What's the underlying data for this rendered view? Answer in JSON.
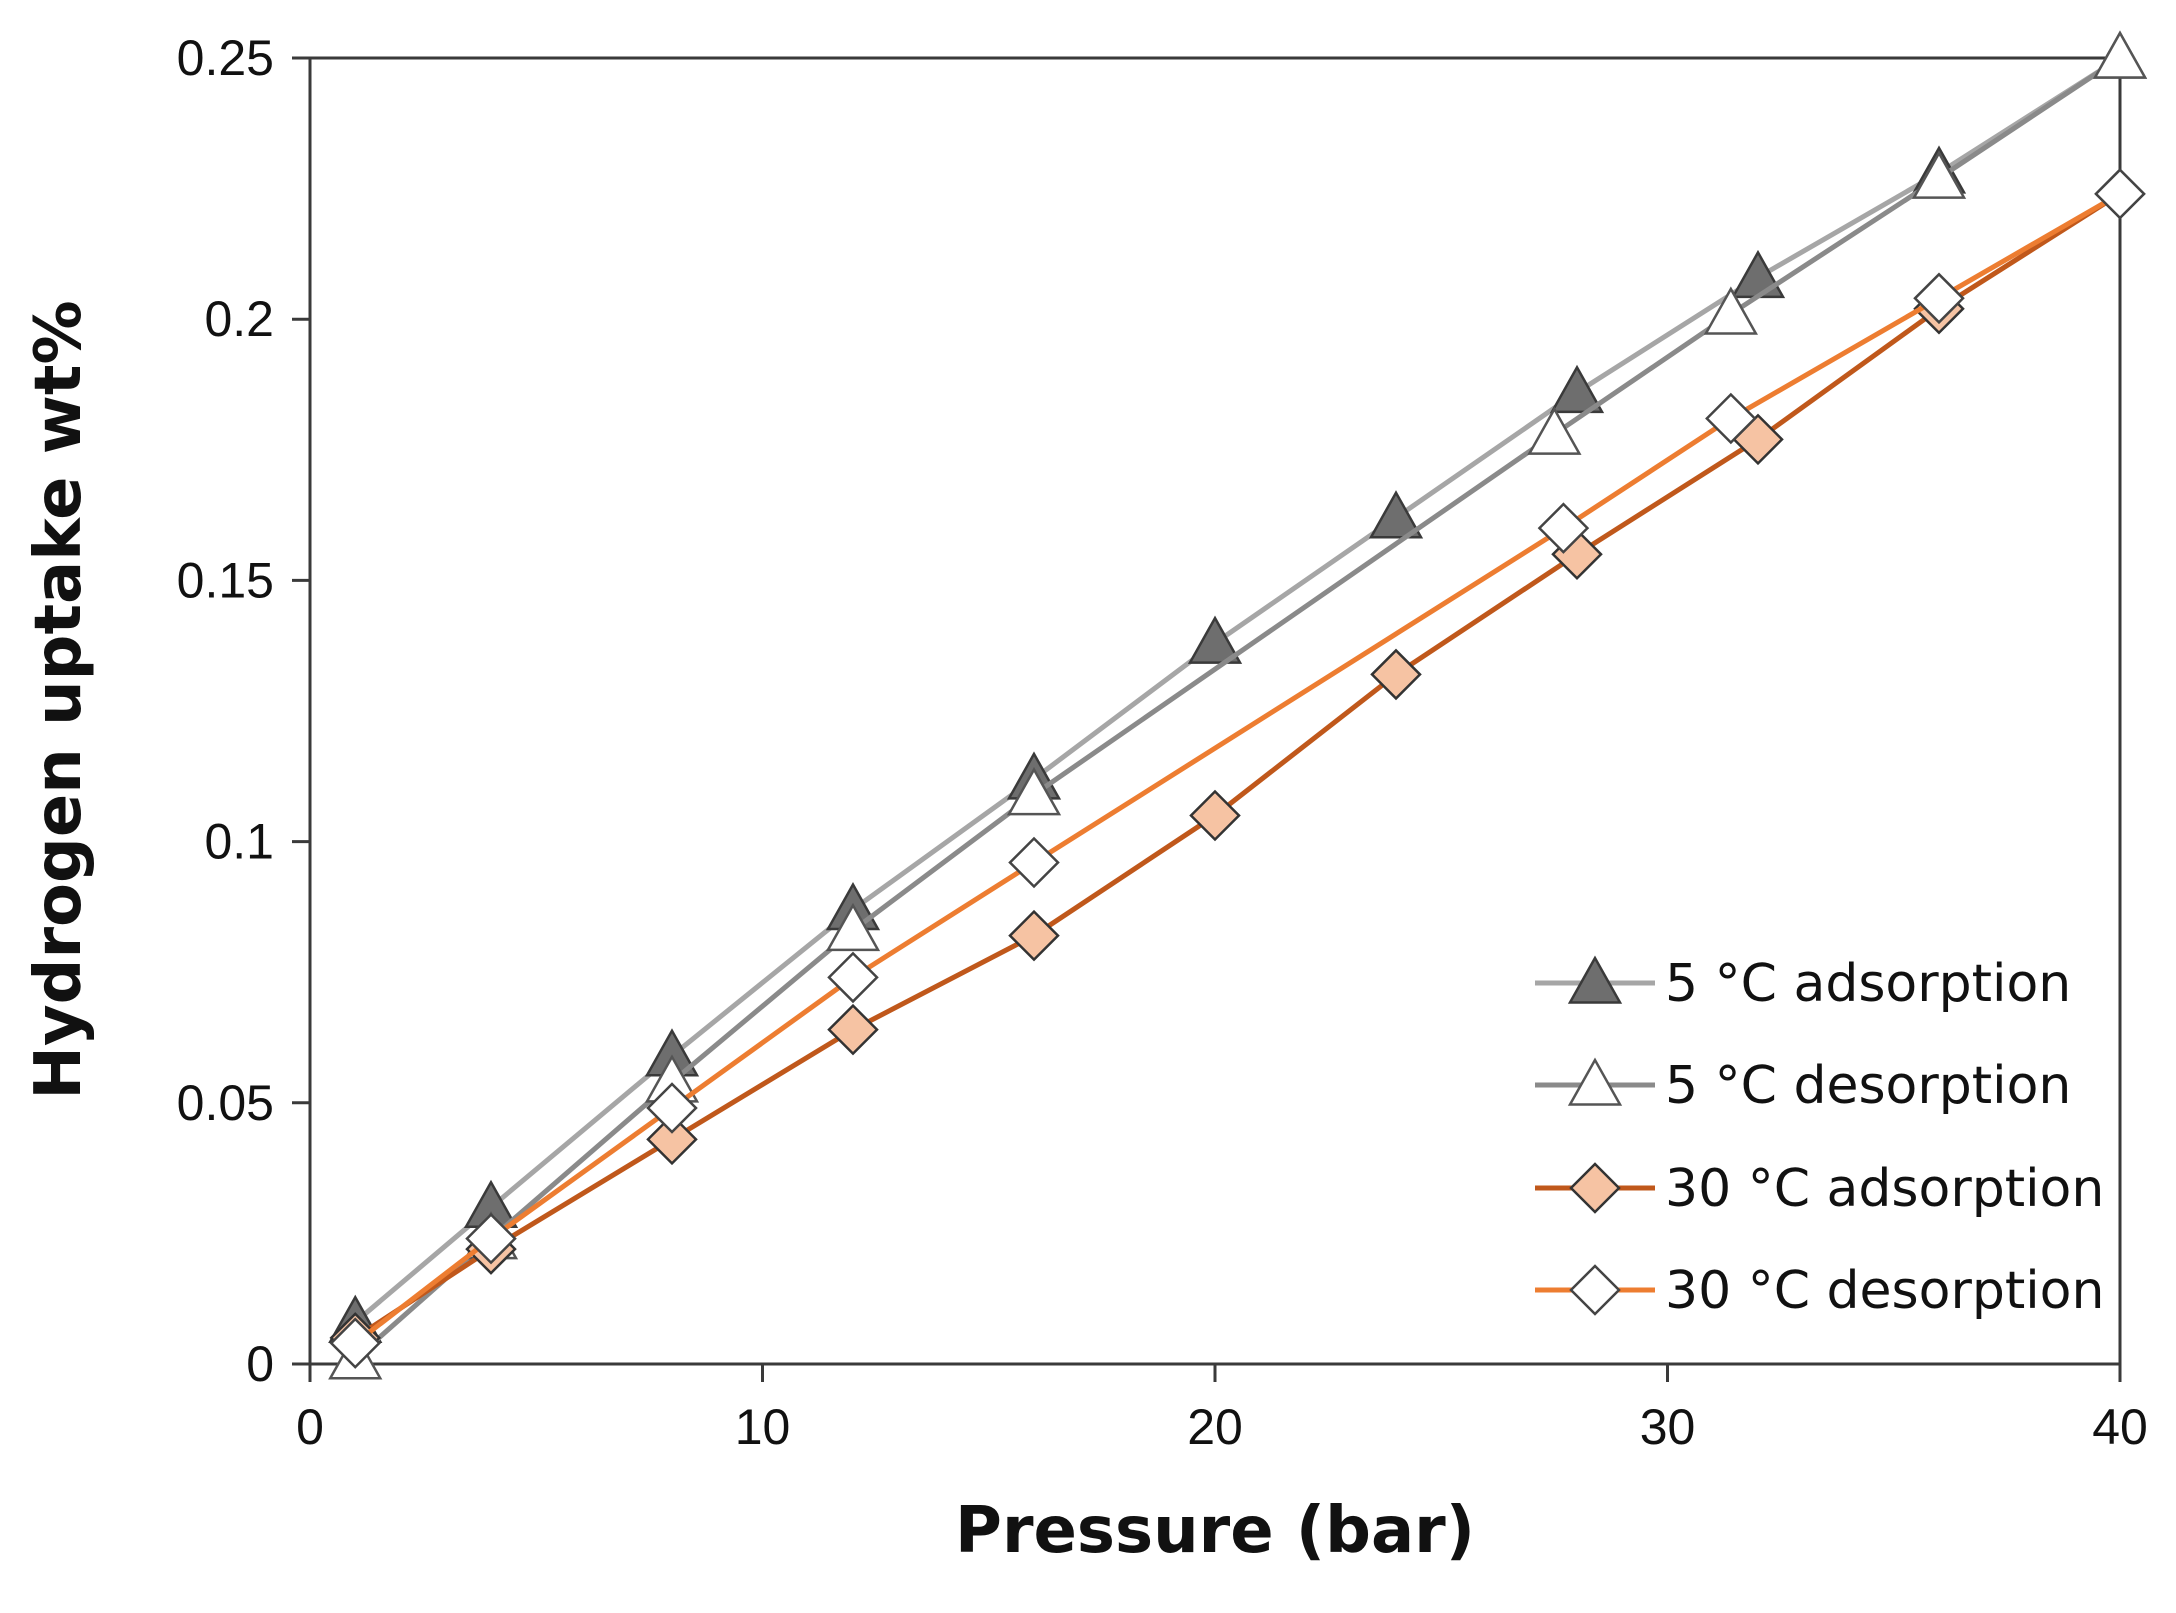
{
  "chart_data": {
    "type": "line",
    "xlabel": "Pressure (bar)",
    "ylabel": "Hydrogen uptake wt%",
    "xlim": [
      0,
      40
    ],
    "ylim": [
      0,
      0.25
    ],
    "xticks": [
      0,
      10,
      20,
      30,
      40
    ],
    "xtick_labels": [
      "0",
      "10",
      "20",
      "30",
      "40"
    ],
    "yticks": [
      0,
      0.05,
      0.1,
      0.15,
      0.2,
      0.25
    ],
    "ytick_labels": [
      "0",
      "0.05",
      "0.1",
      "0.15",
      "0.2",
      "0.25"
    ],
    "grid": false,
    "legend_position": "bottom-right",
    "series": [
      {
        "name": "5 °C adsorption",
        "line_color": "#a6a6a6",
        "marker": "triangle",
        "marker_fill": "#6e6e6e",
        "marker_stroke": "#3a3a3a",
        "x": [
          1,
          4,
          8,
          12,
          16,
          20,
          24,
          28,
          32,
          36,
          40
        ],
        "y": [
          0.008,
          0.03,
          0.059,
          0.087,
          0.112,
          0.138,
          0.162,
          0.186,
          0.208,
          0.228,
          0.25
        ]
      },
      {
        "name": "5 °C desorption",
        "line_color": "#8a8a8a",
        "marker": "triangle",
        "marker_fill": "#ffffff",
        "marker_stroke": "#555555",
        "x": [
          1,
          4,
          8,
          12,
          16,
          27.5,
          31.4,
          36,
          40
        ],
        "y": [
          0.001,
          0.024,
          0.054,
          0.083,
          0.109,
          0.178,
          0.201,
          0.227,
          0.25
        ]
      },
      {
        "name": "30 °C adsorption",
        "line_color": "#c0581b",
        "marker": "diamond",
        "marker_fill": "#f6c3a3",
        "marker_stroke": "#333333",
        "x": [
          1,
          4,
          8,
          12,
          16,
          20,
          24,
          28,
          32,
          36,
          40
        ],
        "y": [
          0.005,
          0.022,
          0.043,
          0.064,
          0.082,
          0.105,
          0.132,
          0.155,
          0.177,
          0.202,
          0.224
        ]
      },
      {
        "name": "30 °C desorption",
        "line_color": "#ed7d31",
        "marker": "diamond",
        "marker_fill": "#ffffff",
        "marker_stroke": "#444444",
        "x": [
          1,
          4,
          8,
          12,
          16,
          27.7,
          31.4,
          36,
          40
        ],
        "y": [
          0.004,
          0.024,
          0.049,
          0.074,
          0.096,
          0.16,
          0.181,
          0.204,
          0.224
        ]
      }
    ]
  }
}
